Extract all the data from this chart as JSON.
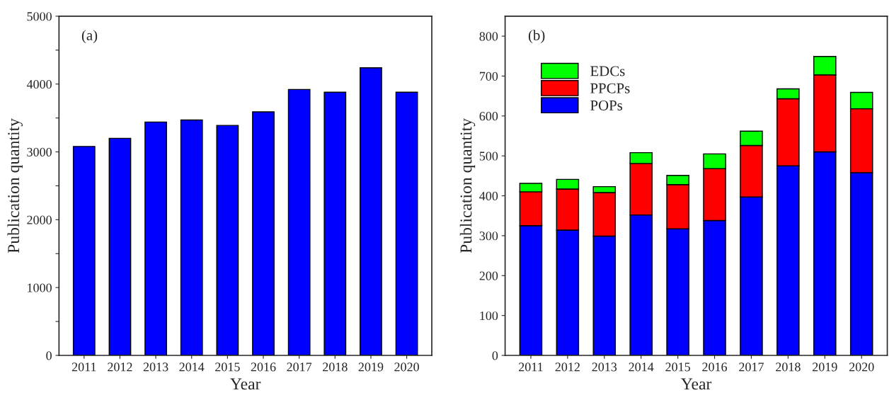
{
  "chart_data": [
    {
      "type": "bar",
      "annotations": [
        "(a)"
      ],
      "xlabel": "Year",
      "ylabel": "Publication quantity",
      "categories": [
        "2011",
        "2012",
        "2013",
        "2014",
        "2015",
        "2016",
        "2017",
        "2018",
        "2019",
        "2020"
      ],
      "values": [
        3080,
        3200,
        3440,
        3470,
        3390,
        3590,
        3920,
        3880,
        4240,
        3880
      ],
      "color": "#0000ff",
      "ylim": [
        0,
        5000
      ],
      "yticks": [
        0,
        {
          "value": 500,
          "label": null
        },
        1000,
        {
          "value": 1500,
          "label": null
        },
        2000,
        {
          "value": 2500,
          "label": null
        },
        3000,
        {
          "value": 3500,
          "label": null
        },
        4000,
        {
          "value": 4500,
          "label": null
        },
        5000
      ],
      "grid": false,
      "legend": false
    },
    {
      "type": "bar",
      "annotations": [
        "(b)"
      ],
      "xlabel": "Year",
      "ylabel": "Publication quantity",
      "stacked": true,
      "categories": [
        "2011",
        "2012",
        "2013",
        "2014",
        "2015",
        "2016",
        "2017",
        "2018",
        "2019",
        "2020"
      ],
      "series": [
        {
          "name": "POPs",
          "color": "#0000ff",
          "values": [
            325,
            314,
            299,
            352,
            317,
            338,
            397,
            475,
            510,
            458
          ]
        },
        {
          "name": "PPCPs",
          "color": "#ff0000",
          "values": [
            85,
            103,
            109,
            129,
            111,
            130,
            129,
            168,
            193,
            160
          ]
        },
        {
          "name": "EDCs",
          "color": "#00ff00",
          "values": [
            21,
            24,
            15,
            27,
            23,
            37,
            36,
            25,
            46,
            41
          ]
        }
      ],
      "ylim": [
        0,
        850
      ],
      "yticks": [
        0,
        100,
        200,
        300,
        400,
        500,
        600,
        700,
        800
      ],
      "grid": false,
      "legend": "top left"
    }
  ]
}
